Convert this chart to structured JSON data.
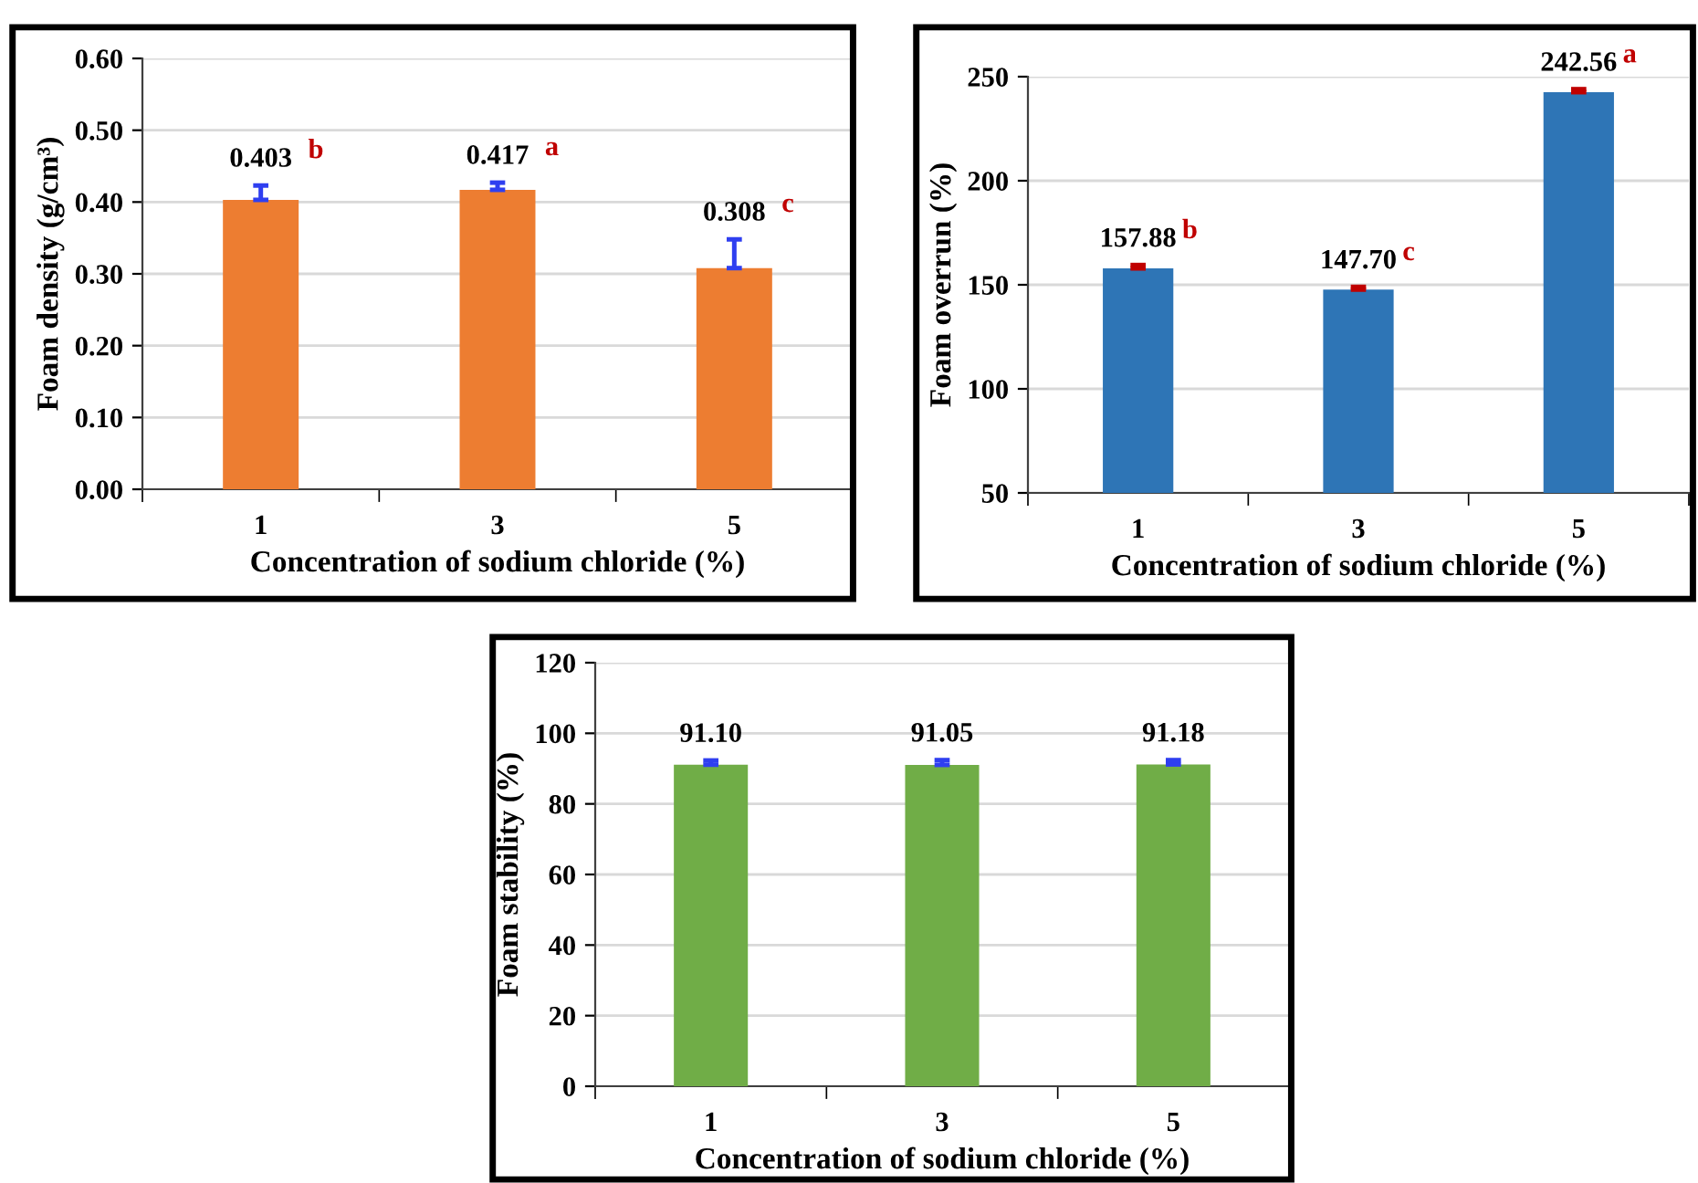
{
  "chart_data": [
    {
      "type": "bar",
      "xlabel": "Concentration of sodium chloride (%)",
      "ylabel": "Foam density (g/cm³)",
      "categories": [
        "1",
        "3",
        "5"
      ],
      "values": [
        0.403,
        0.417,
        0.308
      ],
      "color": "#ed7d31",
      "errors": [
        [
          0.403,
          0.423
        ],
        [
          0.417,
          0.427
        ],
        [
          0.308,
          0.348
        ]
      ],
      "value_labels": [
        "0.403",
        "0.417",
        "0.308"
      ],
      "annotations": [
        {
          "text": "b",
          "x": "1",
          "y": 0.403
        },
        {
          "text": "a",
          "x": "3",
          "y": 0.417
        },
        {
          "text": "c",
          "x": "5",
          "y": 0.308
        }
      ],
      "ylim": [
        0,
        0.6
      ],
      "yticks": [
        {
          "value": 0,
          "label": "0.00"
        },
        {
          "value": 0.1,
          "label": "0.10"
        },
        {
          "value": 0.2,
          "label": "0.20"
        },
        {
          "value": 0.3,
          "label": "0.30"
        },
        {
          "value": 0.4,
          "label": "0.40"
        },
        {
          "value": 0.5,
          "label": "0.50"
        },
        {
          "value": 0.6,
          "label": "0.60"
        }
      ],
      "grid": "y"
    },
    {
      "type": "bar",
      "xlabel": "Concentration of sodium chloride (%)",
      "ylabel": "Foam overrun (%)",
      "categories": [
        "1",
        "3",
        "5"
      ],
      "values": [
        157.88,
        147.7,
        242.56
      ],
      "color": "#2e75b6",
      "errors": [
        [
          157.88,
          159.5
        ],
        [
          147.7,
          149
        ],
        [
          242.56,
          244
        ]
      ],
      "value_labels": [
        "157.88",
        "147.70",
        "242.56"
      ],
      "annotations": [
        {
          "text": "b",
          "x": "1",
          "y": 157.88
        },
        {
          "text": "c",
          "x": "3",
          "y": 147.7
        },
        {
          "text": "a",
          "x": "5",
          "y": 242.56
        }
      ],
      "ylim": [
        50,
        250
      ],
      "yticks": [
        50,
        100,
        150,
        200,
        250
      ],
      "grid": "y"
    },
    {
      "type": "bar",
      "xlabel": "Concentration of sodium chloride (%)",
      "ylabel": "Foam stability (%)",
      "categories": [
        "1",
        "3",
        "5"
      ],
      "values": [
        91.1,
        91.05,
        91.18
      ],
      "color": "#70ad47",
      "errors": [
        [
          91.1,
          92.3
        ],
        [
          91.05,
          92.4
        ],
        [
          91.18,
          92.4
        ]
      ],
      "value_labels": [
        "91.10",
        "91.05",
        "91.18"
      ],
      "ylim": [
        0,
        120
      ],
      "yticks": [
        0,
        20,
        40,
        60,
        80,
        100,
        120
      ],
      "grid": "y"
    }
  ]
}
